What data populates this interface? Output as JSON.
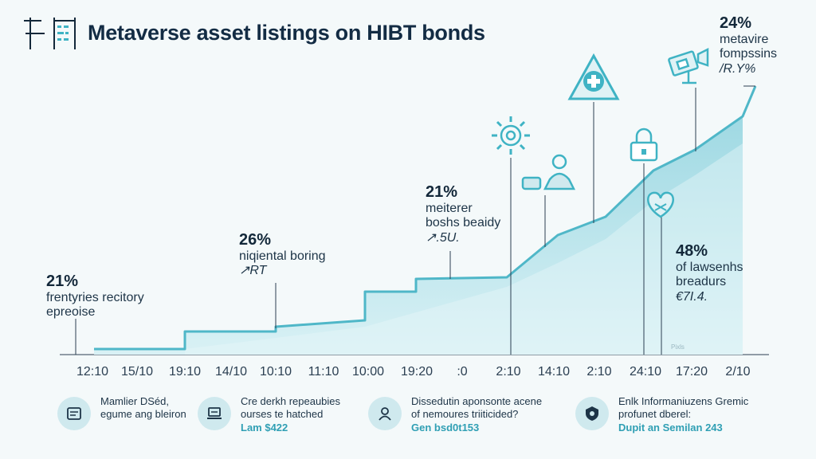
{
  "header": {
    "title": "Metaverse asset listings on HIBT bonds",
    "logo_alt": "HIBT logo"
  },
  "colors": {
    "area_fill": "#b9e3ea",
    "area_light": "#d6f0f4",
    "line": "#4fb7c8",
    "icon": "#3fb3c4",
    "text": "#1d3447",
    "accent": "#2f9fb4"
  },
  "chart_data": {
    "type": "area",
    "title": "Metaverse asset listings on HIBT bonds",
    "x_labels": [
      "12:10",
      "15/10",
      "19:10",
      "14/10",
      "10:10",
      "11:10",
      "10:00",
      "19:20",
      ":0",
      "2:10",
      "14:10",
      "2:10",
      "24:10",
      "17:20",
      "2/10"
    ],
    "grid": false,
    "annotations": [
      {
        "pct": "21%",
        "line1": "frentyries recitory",
        "line2": "epreoise",
        "line3": ""
      },
      {
        "pct": "26%",
        "line1": "niqiental boring",
        "line2": "",
        "line3": "↗RT"
      },
      {
        "pct": "21%",
        "line1": "meiterer",
        "line2": "boshs beaidy",
        "line3": "↗.5U."
      },
      {
        "pct": "24%",
        "line1": "metavire",
        "line2": "fompssins",
        "line3": "/R.Y%"
      },
      {
        "pct": "48%",
        "line1": "of lawsenhs",
        "line2": "breadurs",
        "line3": "€7I.4."
      }
    ],
    "icons": [
      "sun-icon",
      "person-icon",
      "medical-icon",
      "lock-icon",
      "heart-icon",
      "camera-icon"
    ]
  },
  "footer": {
    "cards": [
      {
        "icon": "document-icon",
        "line1": "Mamlier DSéd,",
        "line2": "egume ang bleiron",
        "highlight": ""
      },
      {
        "icon": "laptop-icon",
        "line1": "Cre derkh repeaubies",
        "line2": "ourses te hatched",
        "highlight": "Lam $422"
      },
      {
        "icon": "user-icon",
        "line1": "Dissedutin aponsonte acene",
        "line2": "of nemoures triiticided?",
        "highlight": "Gen bsd0t153"
      },
      {
        "icon": "shield-icon",
        "line1": "Enlk Informaniuzens Gremic",
        "line2": "profunet dberel:",
        "highlight": "Dupit an Semilan 243"
      }
    ]
  },
  "watermark": "Pixls"
}
